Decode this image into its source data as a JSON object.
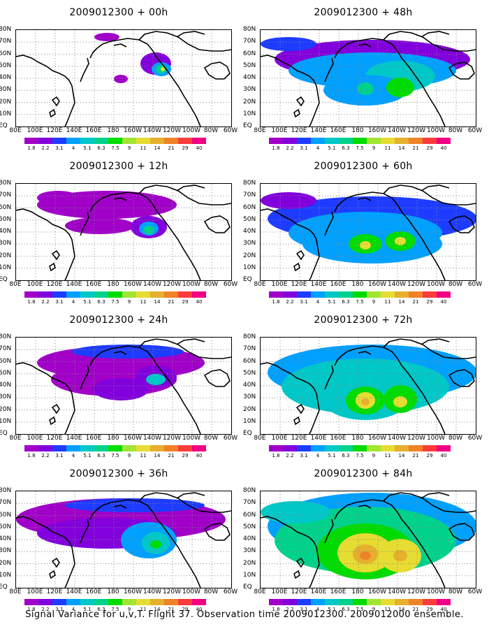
{
  "panels": [
    {
      "title": "2009012300 + 00h"
    },
    {
      "title": "2009012300 + 48h"
    },
    {
      "title": "2009012300 + 12h"
    },
    {
      "title": "2009012300 + 60h"
    },
    {
      "title": "2009012300 + 24h"
    },
    {
      "title": "2009012300 + 72h"
    },
    {
      "title": "2009012300 + 36h"
    },
    {
      "title": "2009012300 + 84h"
    }
  ],
  "lat_labels": [
    "80N",
    "70N",
    "60N",
    "50N",
    "40N",
    "30N",
    "20N",
    "10N",
    "EQ"
  ],
  "lon_labels": [
    "80E",
    "100E",
    "120E",
    "140E",
    "160E",
    "180",
    "160W",
    "140W",
    "120W",
    "100W",
    "80W",
    "60W"
  ],
  "colorbar": {
    "labels": [
      "1.8",
      "2.2",
      "3.1",
      "4",
      "5.1",
      "6.3",
      "7.5",
      "9",
      "11",
      "14",
      "21",
      "29",
      "40"
    ],
    "colors": [
      "#a000c8",
      "#8200dc",
      "#1e3cff",
      "#00a0ff",
      "#00c8c8",
      "#00d28c",
      "#00dc00",
      "#a0e632",
      "#e6dc32",
      "#e6af2d",
      "#f08228",
      "#fa3c3c",
      "#f00082"
    ]
  },
  "caption": "Signal Variance for u,v,T. Flight 37. Observation time 2009012300. 2009012000 ensemble."
}
